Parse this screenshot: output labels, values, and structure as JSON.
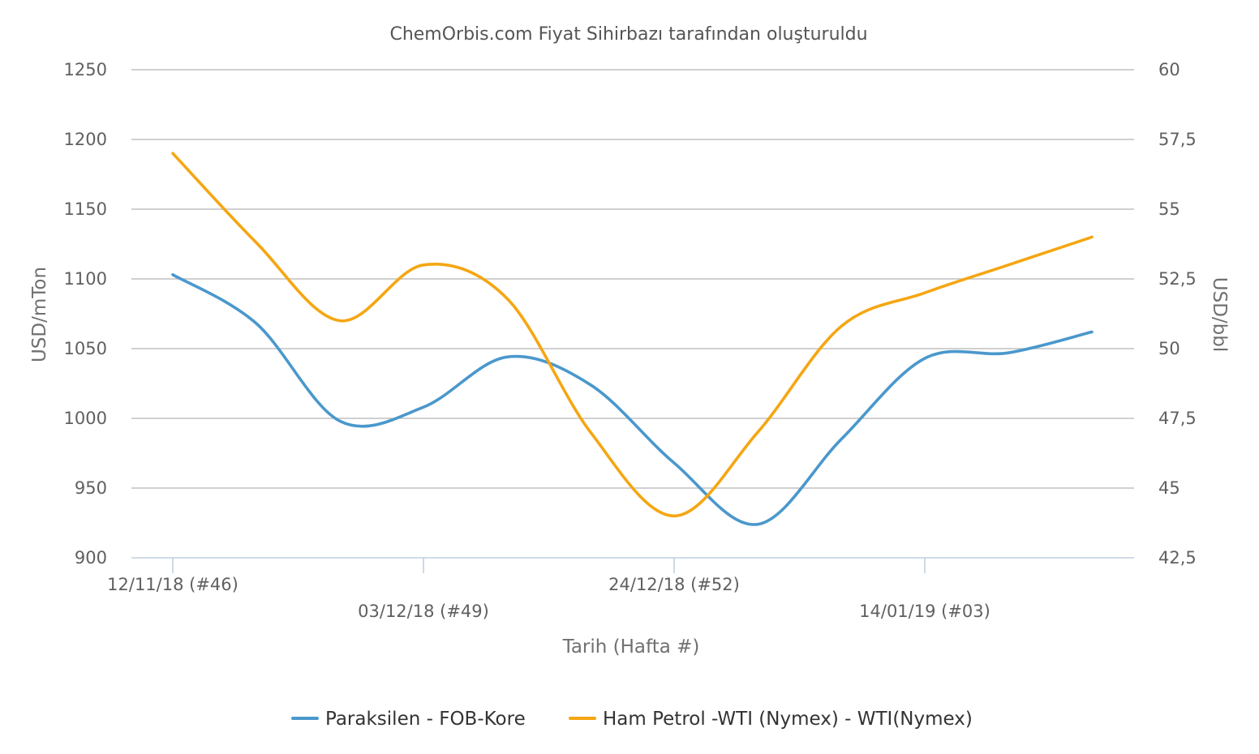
{
  "chart_data": {
    "type": "line",
    "title": "ChemOrbis.com Fiyat Sihirbazı tarafından oluşturuldu",
    "xlabel": "Tarih (Hafta #)",
    "ylabel_left": "USD/mTon",
    "ylabel_right": "USD/bbl",
    "ylim_left": [
      900,
      1250
    ],
    "ylim_right": [
      42.5,
      60
    ],
    "yticks_left": [
      "1250",
      "1200",
      "1150",
      "1100",
      "1050",
      "1000",
      "950",
      "900"
    ],
    "yticks_right": [
      "60",
      "57,5",
      "55",
      "52,5",
      "50",
      "47,5",
      "45",
      "42,5"
    ],
    "grid": true,
    "legend_position": "bottom",
    "weeks": 12,
    "x_ticks": [
      {
        "week_index": 0,
        "label": "12/11/18 (#46)",
        "row": 1
      },
      {
        "week_index": 3,
        "label": "03/12/18 (#49)",
        "row": 2
      },
      {
        "week_index": 6,
        "label": "24/12/18 (#52)",
        "row": 1
      },
      {
        "week_index": 9,
        "label": "14/01/19 (#03)",
        "row": 2
      }
    ],
    "series": [
      {
        "name": "Paraksilen - FOB-Kore",
        "axis": "left",
        "color": "#4a98cc",
        "values": [
          1103,
          1068,
          998,
          1008,
          1044,
          1024,
          968,
          924,
          985,
          1043,
          1047,
          1062
        ]
      },
      {
        "name": "Ham Petrol -WTI (Nymex) - WTI(Nymex)",
        "axis": "right",
        "color": "#f5a612",
        "values": [
          57.0,
          53.8,
          51.0,
          53.0,
          51.8,
          47.0,
          44.0,
          47.0,
          50.8,
          52.0,
          53.0,
          54.0
        ]
      }
    ]
  }
}
